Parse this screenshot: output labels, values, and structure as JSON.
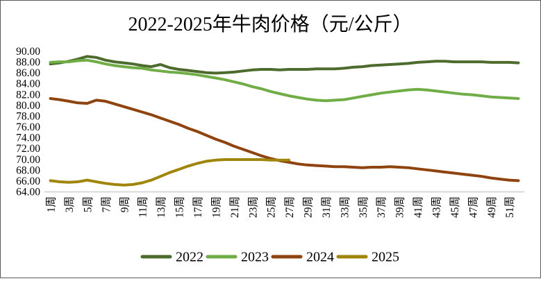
{
  "title": "2022-2025年牛肉价格（元/公斤）",
  "chart_data": {
    "type": "line",
    "title": "2022-2025年牛肉价格（元/公斤）",
    "x_categories_unit": "周",
    "x_tick_labels": [
      "1周",
      "3周",
      "5周",
      "7周",
      "9周",
      "11周",
      "13周",
      "15周",
      "17周",
      "19周",
      "21周",
      "23周",
      "25周",
      "27周",
      "29周",
      "31周",
      "33周",
      "35周",
      "37周",
      "39周",
      "41周",
      "43周",
      "45周",
      "47周",
      "49周",
      "51周"
    ],
    "x_weeks_total": 52,
    "ylim": [
      64,
      90
    ],
    "y_tick_step": 2,
    "y_tick_labels": [
      "90.00",
      "88.00",
      "86.00",
      "84.00",
      "82.00",
      "80.00",
      "78.00",
      "76.00",
      "74.00",
      "72.00",
      "70.00",
      "68.00",
      "66.00",
      "64.00"
    ],
    "grid": "off",
    "legend_position": "bottom",
    "axis_line_color": "#d8d8d8",
    "series": [
      {
        "name": "2022",
        "color": "#4d6b2c",
        "values": [
          87.6,
          87.8,
          88.1,
          88.5,
          89.0,
          88.8,
          88.3,
          88.0,
          87.8,
          87.6,
          87.3,
          87.1,
          87.5,
          86.9,
          86.6,
          86.4,
          86.2,
          86.0,
          85.9,
          86.0,
          86.1,
          86.3,
          86.5,
          86.6,
          86.6,
          86.5,
          86.6,
          86.6,
          86.6,
          86.7,
          86.7,
          86.7,
          86.8,
          87.0,
          87.1,
          87.3,
          87.4,
          87.5,
          87.6,
          87.7,
          87.9,
          88.0,
          88.1,
          88.1,
          88.0,
          88.0,
          88.0,
          88.0,
          87.9,
          87.9,
          87.9,
          87.8
        ]
      },
      {
        "name": "2023",
        "color": "#70ad47",
        "values": [
          87.9,
          88.0,
          88.0,
          88.2,
          88.3,
          88.0,
          87.6,
          87.3,
          87.1,
          86.9,
          86.8,
          86.5,
          86.3,
          86.1,
          86.0,
          85.8,
          85.6,
          85.3,
          85.0,
          84.7,
          84.3,
          83.9,
          83.4,
          83.0,
          82.5,
          82.1,
          81.7,
          81.4,
          81.1,
          80.9,
          80.8,
          80.9,
          81.0,
          81.3,
          81.6,
          81.9,
          82.2,
          82.4,
          82.6,
          82.8,
          82.9,
          82.8,
          82.6,
          82.4,
          82.2,
          82.0,
          81.9,
          81.7,
          81.5,
          81.4,
          81.3,
          81.2
        ]
      },
      {
        "name": "2024",
        "color": "#8f430e",
        "values": [
          81.2,
          81.0,
          80.7,
          80.4,
          80.3,
          80.9,
          80.7,
          80.2,
          79.7,
          79.2,
          78.7,
          78.2,
          77.6,
          77.0,
          76.4,
          75.7,
          75.1,
          74.4,
          73.7,
          73.1,
          72.4,
          71.8,
          71.2,
          70.6,
          70.1,
          69.7,
          69.4,
          69.1,
          68.9,
          68.8,
          68.7,
          68.6,
          68.6,
          68.5,
          68.4,
          68.5,
          68.5,
          68.6,
          68.5,
          68.4,
          68.2,
          68.0,
          67.8,
          67.6,
          67.4,
          67.2,
          67.0,
          66.8,
          66.5,
          66.3,
          66.1,
          66.0
        ]
      },
      {
        "name": "2025",
        "color": "#a0850b",
        "values": [
          66.0,
          65.8,
          65.7,
          65.8,
          66.1,
          65.8,
          65.5,
          65.3,
          65.2,
          65.3,
          65.6,
          66.1,
          66.8,
          67.5,
          68.1,
          68.7,
          69.2,
          69.6,
          69.8,
          69.9,
          69.9,
          69.9,
          69.9,
          69.9,
          69.8,
          69.8,
          69.8
        ]
      }
    ]
  }
}
